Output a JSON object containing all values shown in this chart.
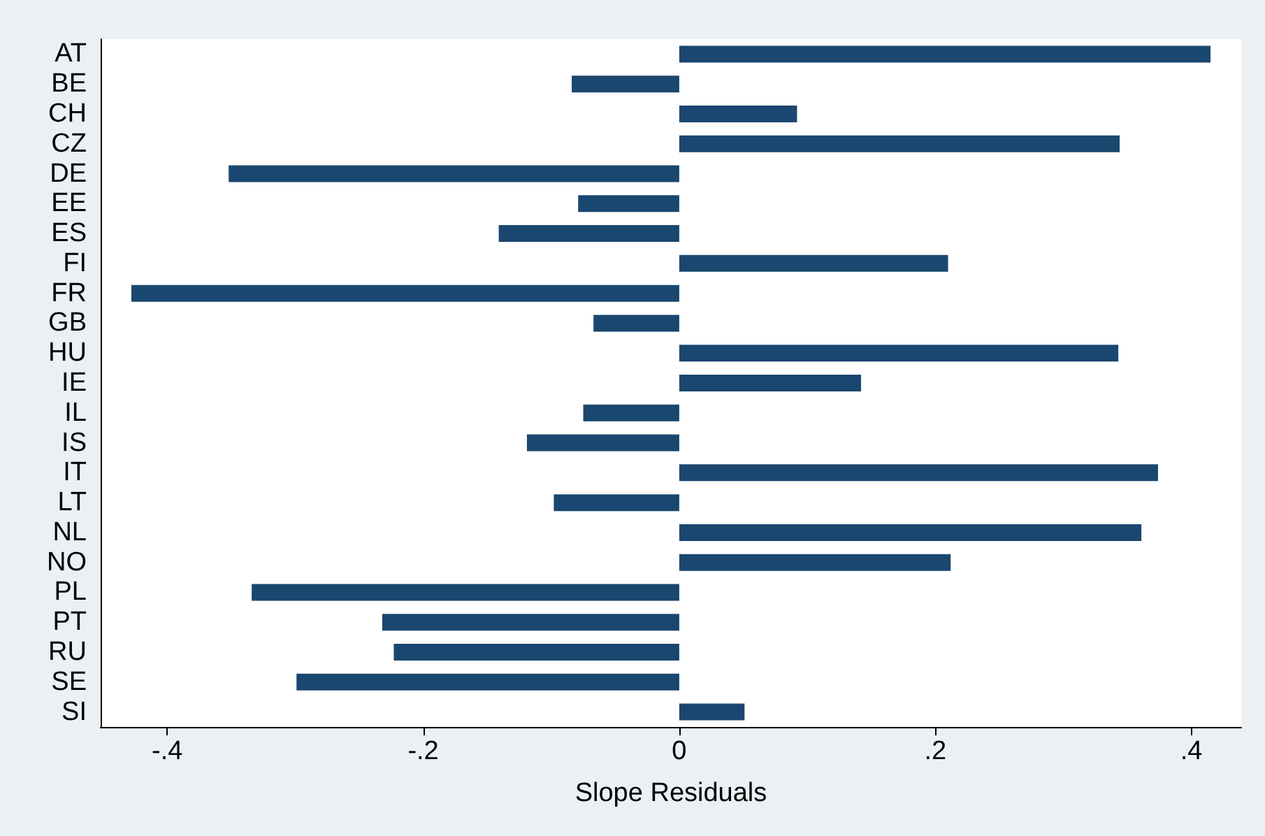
{
  "chart_data": {
    "type": "bar",
    "orientation": "horizontal",
    "xlabel": "Slope Residuals",
    "categories": [
      "AT",
      "BE",
      "CH",
      "CZ",
      "DE",
      "EE",
      "ES",
      "FI",
      "FR",
      "GB",
      "HU",
      "IE",
      "IL",
      "IS",
      "IT",
      "LT",
      "NL",
      "NO",
      "PL",
      "PT",
      "RU",
      "SE",
      "SI"
    ],
    "values": [
      0.415,
      -0.084,
      0.092,
      0.344,
      -0.352,
      -0.079,
      -0.141,
      0.21,
      -0.428,
      -0.067,
      0.343,
      0.142,
      -0.075,
      -0.119,
      0.374,
      -0.098,
      0.361,
      0.212,
      -0.334,
      -0.232,
      -0.223,
      -0.299,
      0.051
    ],
    "color": "#1a476f",
    "xlim": [
      -0.452,
      0.439
    ],
    "xticks": [
      {
        "value": -0.4,
        "label": "-.4"
      },
      {
        "value": -0.2,
        "label": "-.2"
      },
      0,
      {
        "value": 0.2,
        "label": ".2"
      },
      {
        "value": 0.4,
        "label": ".4"
      }
    ],
    "grid": false
  }
}
